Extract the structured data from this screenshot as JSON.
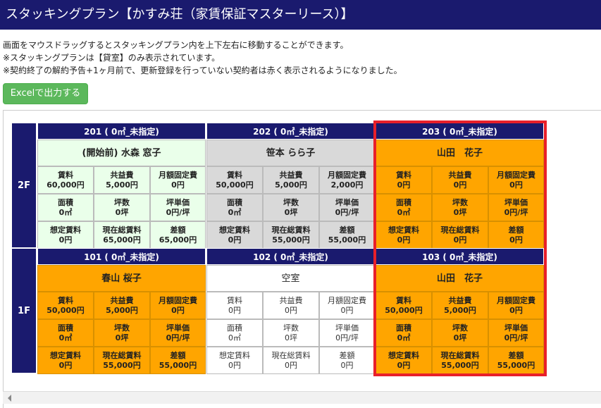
{
  "title": "スタッキングプラン【かすみ荘（家賃保証マスターリース）】",
  "notes": [
    "画面をマウスドラッグするとスタッキングプラン内を上下左右に移動することができます。",
    "※スタッキングプランは【貸室】のみ表示されています。",
    "※契約終了の解約予告+1ヶ月前で、更新登録を行っていない契約者は赤く表示されるようになりました。"
  ],
  "excel_button": "Excelで出力する",
  "floors": [
    {
      "label": "2F",
      "rooms": [
        {
          "header": "201 ( 0㎡_未指定)",
          "tenant": "(開始前) 水森 窓子",
          "style": "green",
          "cells": [
            [
              "賃料",
              "60,000円"
            ],
            [
              "共益費",
              "5,000円"
            ],
            [
              "月額固定費",
              "0円"
            ],
            [
              "面積",
              "0㎡"
            ],
            [
              "坪数",
              "0坪"
            ],
            [
              "坪単価",
              "0円/坪"
            ],
            [
              "想定賃料",
              "0円"
            ],
            [
              "現在総賃料",
              "65,000円"
            ],
            [
              "差額",
              "65,000円"
            ]
          ]
        },
        {
          "header": "202 ( 0㎡_未指定)",
          "tenant": "笹本 らら子",
          "style": "gray",
          "cells": [
            [
              "賃料",
              "50,000円"
            ],
            [
              "共益費",
              "5,000円"
            ],
            [
              "月額固定費",
              "2,000円"
            ],
            [
              "面積",
              "0㎡"
            ],
            [
              "坪数",
              "0坪"
            ],
            [
              "坪単価",
              "0円/坪"
            ],
            [
              "想定賃料",
              "0円"
            ],
            [
              "現在総賃料",
              "55,000円"
            ],
            [
              "差額",
              "55,000円"
            ]
          ]
        },
        {
          "header": "203 ( 0㎡_未指定)",
          "tenant": "山田　花子",
          "style": "orange",
          "cells": [
            [
              "賃料",
              "0円"
            ],
            [
              "共益費",
              "0円"
            ],
            [
              "月額固定費",
              "0円"
            ],
            [
              "面積",
              "0㎡"
            ],
            [
              "坪数",
              "0坪"
            ],
            [
              "坪単価",
              "0円/坪"
            ],
            [
              "想定賃料",
              "0円"
            ],
            [
              "現在総賃料",
              "0円"
            ],
            [
              "差額",
              "0円"
            ]
          ]
        }
      ]
    },
    {
      "label": "1F",
      "rooms": [
        {
          "header": "101 ( 0㎡_未指定)",
          "tenant": "春山 桜子",
          "style": "orange",
          "cells": [
            [
              "賃料",
              "50,000円"
            ],
            [
              "共益費",
              "5,000円"
            ],
            [
              "月額固定費",
              "0円"
            ],
            [
              "面積",
              "0㎡"
            ],
            [
              "坪数",
              "0坪"
            ],
            [
              "坪単価",
              "0円/坪"
            ],
            [
              "想定賃料",
              "0円"
            ],
            [
              "現在総賃料",
              "55,000円"
            ],
            [
              "差額",
              "55,000円"
            ]
          ]
        },
        {
          "header": "102 ( 0㎡_未指定)",
          "tenant": "空室",
          "style": "white",
          "cells": [
            [
              "賃料",
              "0円"
            ],
            [
              "共益費",
              "0円"
            ],
            [
              "月額固定費",
              "0円"
            ],
            [
              "面積",
              "0㎡"
            ],
            [
              "坪数",
              "0坪"
            ],
            [
              "坪単価",
              "0円/坪"
            ],
            [
              "想定賃料",
              "0円"
            ],
            [
              "現在総賃料",
              "0円"
            ],
            [
              "差額",
              "0円"
            ]
          ]
        },
        {
          "header": "103 ( 0㎡_未指定)",
          "tenant": "山田　花子",
          "style": "orange",
          "cells": [
            [
              "賃料",
              "50,000円"
            ],
            [
              "共益費",
              "5,000円"
            ],
            [
              "月額固定費",
              "0円"
            ],
            [
              "面積",
              "0㎡"
            ],
            [
              "坪数",
              "0坪"
            ],
            [
              "坪単価",
              "0円/坪"
            ],
            [
              "想定賃料",
              "0円"
            ],
            [
              "現在総賃料",
              "55,000円"
            ],
            [
              "差額",
              "55,000円"
            ]
          ]
        }
      ]
    }
  ],
  "colors": {
    "navy": "#1a1a6e",
    "orange": "#ffa500",
    "highlight": "#e8202a",
    "excel": "#5cb85c"
  }
}
